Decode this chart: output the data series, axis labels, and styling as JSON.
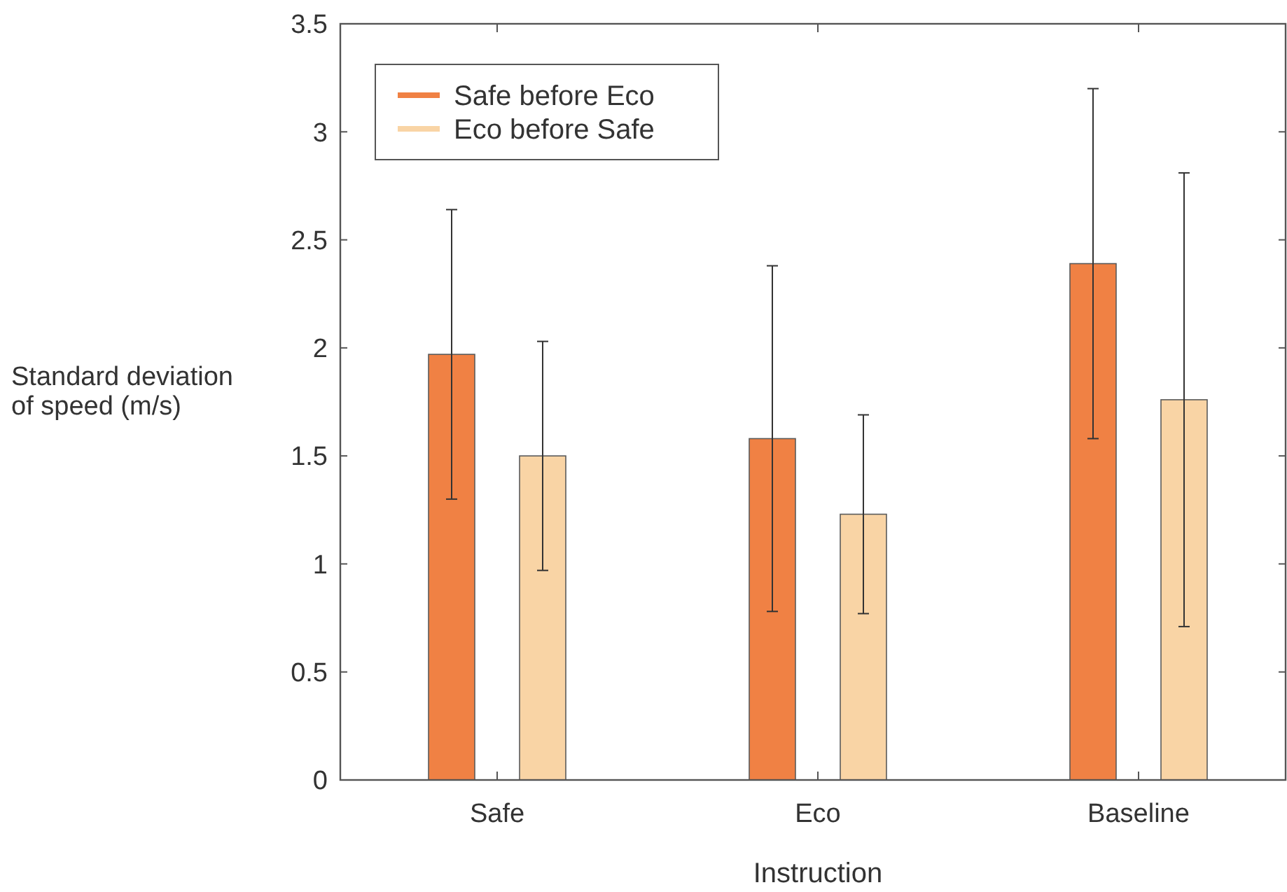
{
  "chart_data": {
    "type": "bar",
    "xlabel": "Instruction",
    "ylabel": "Standard deviation of speed (m/s)",
    "categories": [
      "Safe",
      "Eco",
      "Baseline"
    ],
    "series": [
      {
        "name": "Safe before Eco",
        "color": "#f08144",
        "values": [
          1.97,
          1.58,
          2.39
        ],
        "errors": [
          0.67,
          0.8,
          0.81
        ]
      },
      {
        "name": "Eco before Safe",
        "color": "#f9d4a5",
        "values": [
          1.5,
          1.23,
          1.76
        ],
        "errors": [
          0.53,
          0.46,
          1.05
        ]
      }
    ],
    "ylim": [
      0,
      3.5
    ],
    "yticks": [
      0,
      0.5,
      1,
      1.5,
      2,
      2.5,
      3,
      3.5
    ],
    "grid": false,
    "legend": "top left"
  }
}
